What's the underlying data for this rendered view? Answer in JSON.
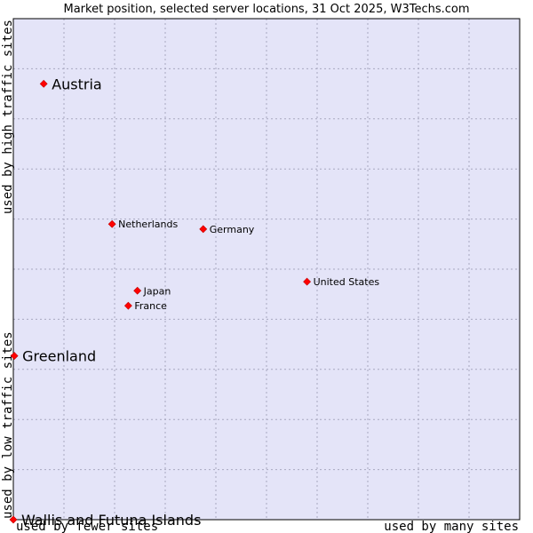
{
  "chart_data": {
    "type": "scatter",
    "title": "Market position, selected server locations, 31 Oct 2025, W3Techs.com",
    "xlabel_left": "used by fewer sites",
    "xlabel_right": "used by many sites",
    "ylabel_bottom": "used by low traffic sites",
    "ylabel_top": "used by high traffic sites",
    "xlim": [
      0,
      10
    ],
    "ylim": [
      0,
      10
    ],
    "grid": true,
    "points": [
      {
        "label": "Austria",
        "x": 0.6,
        "y": 8.7,
        "size": "large"
      },
      {
        "label": "Netherlands",
        "x": 1.95,
        "y": 5.9,
        "size": "small"
      },
      {
        "label": "Germany",
        "x": 3.75,
        "y": 5.8,
        "size": "small"
      },
      {
        "label": "United States",
        "x": 5.8,
        "y": 4.75,
        "size": "small"
      },
      {
        "label": "Japan",
        "x": 2.45,
        "y": 4.57,
        "size": "small"
      },
      {
        "label": "France",
        "x": 2.27,
        "y": 4.27,
        "size": "small"
      },
      {
        "label": "Greenland",
        "x": 0.02,
        "y": 3.27,
        "size": "large"
      },
      {
        "label": "Wallis and Futuna Islands",
        "x": 0.0,
        "y": 0.0,
        "size": "large"
      }
    ]
  },
  "colors": {
    "plot_background": "#e4e4f8",
    "grid": "#a8a8c0",
    "marker": "#ff0000"
  }
}
